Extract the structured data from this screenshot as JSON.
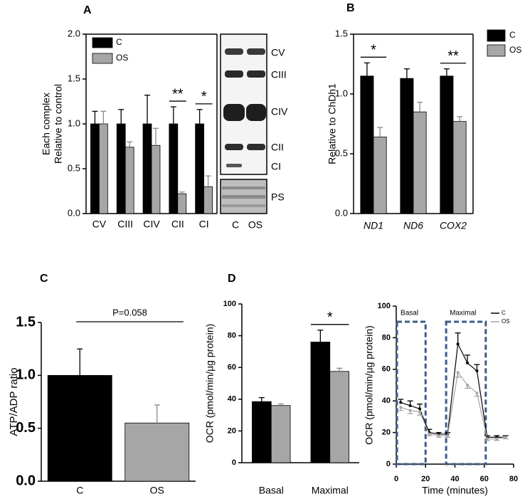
{
  "chart_data": [
    {
      "type": "bar",
      "panel": "A",
      "ylabel": [
        "Each complex",
        "Relative to control"
      ],
      "categories": [
        "CV",
        "CIII",
        "CIV",
        "CII",
        "CI"
      ],
      "series": [
        {
          "name": "C",
          "color": "#000000",
          "values": [
            1,
            1,
            1,
            1,
            1
          ],
          "errors": [
            0.14,
            0.16,
            0.32,
            0.19,
            0.16
          ]
        },
        {
          "name": "OS",
          "color": "#a6a6a6",
          "values": [
            1.0,
            0.74,
            0.76,
            0.22,
            0.3
          ],
          "errors": [
            0.14,
            0.06,
            0.19,
            0.02,
            0.12
          ]
        }
      ],
      "significance": [
        null,
        null,
        null,
        "**",
        "*"
      ],
      "ylim": [
        0,
        2
      ],
      "yticks": [
        {
          "value": 0,
          "label": "0.0"
        },
        0.5,
        {
          "value": 1,
          "label": "1.0"
        },
        1.5,
        {
          "value": 2,
          "label": "2.0"
        }
      ],
      "legend": "upper left",
      "frame": true
    },
    {
      "type": "bar",
      "panel": "B",
      "ylabel": "Relative to ChDh1",
      "categories": [
        "ND1",
        "ND6",
        "COX2"
      ],
      "category_style": "italic",
      "series": [
        {
          "name": "C",
          "color": "#000000",
          "values": [
            1.15,
            1.13,
            1.15
          ],
          "errors": [
            0.11,
            0.08,
            0.06
          ]
        },
        {
          "name": "OS",
          "color": "#a6a6a6",
          "values": [
            0.64,
            0.85,
            0.77
          ],
          "errors": [
            0.08,
            0.08,
            0.04
          ]
        }
      ],
      "significance": [
        "*",
        null,
        "**"
      ],
      "ylim": [
        0,
        1.5
      ],
      "yticks": [
        {
          "value": 0,
          "label": "0.0"
        },
        0.5,
        {
          "value": 1,
          "label": "1.0"
        },
        1.5
      ],
      "legend": "outside right",
      "frame": true
    },
    {
      "type": "bar",
      "panel": "C",
      "ylabel": "ATP/ADP ratio",
      "categories": [
        "C",
        "OS"
      ],
      "values": [
        1.0,
        0.55
      ],
      "errors": [
        0.25,
        0.17
      ],
      "colors": [
        "#000000",
        "#a6a6a6"
      ],
      "annotation": "P=0.058",
      "ylim": [
        0,
        1.5
      ],
      "yticks": [
        {
          "value": 0,
          "label": "0.0"
        },
        0.5,
        {
          "value": 1,
          "label": "1.0"
        },
        1.5
      ]
    },
    {
      "type": "bar",
      "panel": "D",
      "ylabel": "OCR (pmol/min/µg protein)",
      "categories": [
        "Basal",
        "Maximal"
      ],
      "series": [
        {
          "name": "C",
          "color": "#000000",
          "values": [
            38.5,
            76
          ],
          "errors": [
            2.5,
            7.5
          ]
        },
        {
          "name": "OS",
          "color": "#a6a6a6",
          "values": [
            36,
            57.5
          ],
          "errors": [
            1,
            2
          ]
        }
      ],
      "significance": [
        null,
        "*"
      ],
      "ylim": [
        0,
        100
      ],
      "yticks": [
        0,
        20,
        40,
        60,
        80,
        100
      ]
    },
    {
      "type": "line",
      "xlabel": "Time (minutes)",
      "ylabel": "OCR (pmol/min/µg protein)",
      "x": [
        3,
        9.5,
        16,
        22.5,
        29,
        35,
        42,
        48.5,
        55,
        62,
        68.5,
        74.5
      ],
      "series": [
        {
          "name": "C",
          "color": "#000000",
          "values": [
            39,
            37,
            35,
            20,
            19,
            19,
            76,
            64,
            59,
            17,
            17,
            17
          ],
          "errors": [
            2,
            3,
            3,
            2,
            1,
            1,
            7,
            5,
            4,
            1,
            1,
            1
          ]
        },
        {
          "name": "OS",
          "color": "#a6a6a6",
          "values": [
            36,
            34,
            33,
            19,
            18,
            18,
            58,
            50,
            45,
            16,
            16,
            17
          ],
          "errors": [
            2,
            2,
            2,
            1,
            1,
            1,
            3,
            2,
            2,
            1,
            1,
            1
          ]
        }
      ],
      "regions": [
        {
          "label": "Basal",
          "xrange": [
            0.5,
            20
          ]
        },
        {
          "label": "Maximal",
          "xrange": [
            34,
            61
          ]
        }
      ],
      "xlim": [
        0,
        80
      ],
      "xticks": [
        0,
        20,
        40,
        60,
        80
      ],
      "ylim": [
        0,
        100
      ],
      "yticks": [
        0,
        20,
        40,
        60,
        80,
        100
      ],
      "legend": "upper right"
    }
  ],
  "blot": {
    "bands": [
      "CV",
      "CIII",
      "CIV",
      "CII",
      "CI"
    ],
    "stain": "PS",
    "lanes": [
      "C",
      "OS"
    ]
  }
}
